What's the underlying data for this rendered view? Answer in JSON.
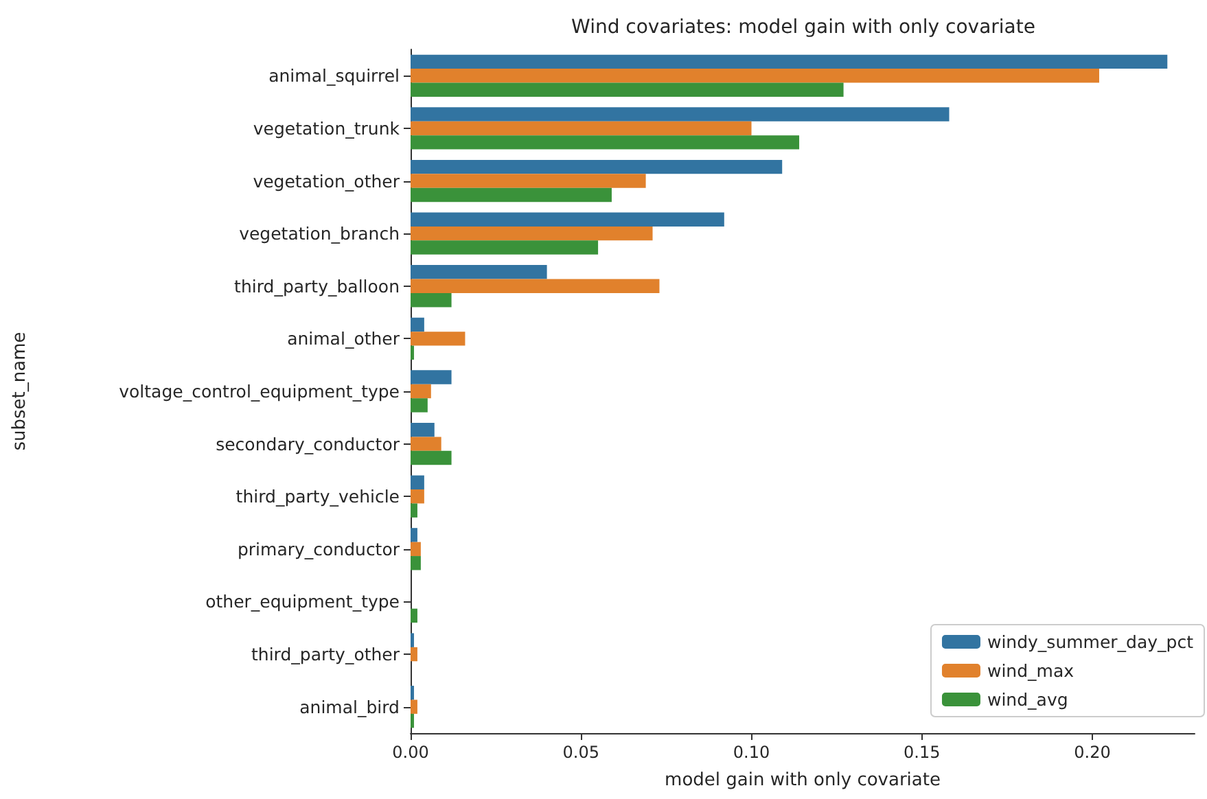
{
  "chart_data": {
    "type": "bar",
    "orientation": "horizontal",
    "title": "Wind covariates: model gain with only covariate",
    "xlabel": "model gain with only covariate",
    "ylabel": "subset_name",
    "categories": [
      "animal_squirrel",
      "vegetation_trunk",
      "vegetation_other",
      "vegetation_branch",
      "third_party_balloon",
      "animal_other",
      "voltage_control_equipment_type",
      "secondary_conductor",
      "third_party_vehicle",
      "primary_conductor",
      "other_equipment_type",
      "third_party_other",
      "animal_bird"
    ],
    "series": [
      {
        "name": "windy_summer_day_pct",
        "color": "#3274a1",
        "values": [
          0.222,
          0.158,
          0.109,
          0.092,
          0.04,
          0.004,
          0.012,
          0.007,
          0.004,
          0.002,
          0.0,
          0.001,
          0.001
        ]
      },
      {
        "name": "wind_max",
        "color": "#e1812c",
        "values": [
          0.202,
          0.1,
          0.069,
          0.071,
          0.073,
          0.016,
          0.006,
          0.009,
          0.004,
          0.003,
          0.0,
          0.002,
          0.002
        ]
      },
      {
        "name": "wind_avg",
        "color": "#3a923a",
        "values": [
          0.127,
          0.114,
          0.059,
          0.055,
          0.012,
          0.001,
          0.005,
          0.012,
          0.002,
          0.003,
          0.002,
          0.0,
          0.001
        ]
      }
    ],
    "xlim": [
      0,
      0.23
    ],
    "xticks": [
      {
        "value": 0,
        "label": "0.00"
      },
      {
        "value": 0.05,
        "label": "0.05"
      },
      {
        "value": 0.1,
        "label": "0.10"
      },
      {
        "value": 0.15,
        "label": "0.15"
      },
      {
        "value": 0.2,
        "label": "0.20"
      }
    ],
    "grid": false,
    "legend": "bottom right"
  }
}
